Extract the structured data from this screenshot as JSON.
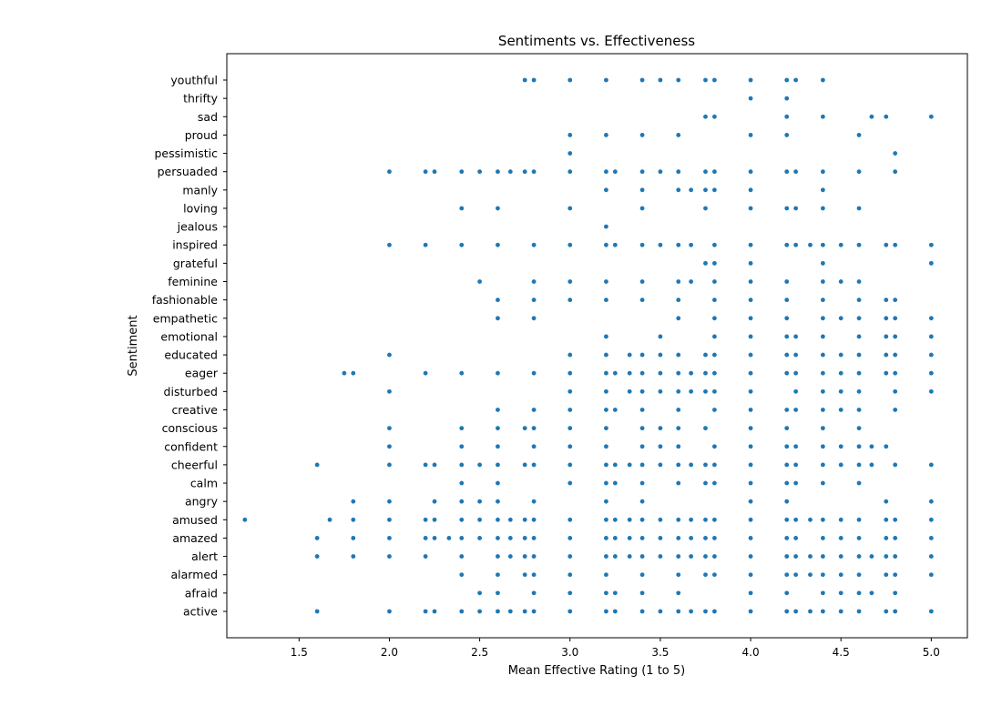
{
  "chart_data": {
    "type": "scatter",
    "title": "Sentiments vs. Effectiveness",
    "xlabel": "Mean Effective Rating (1 to 5)",
    "ylabel": "Sentiment",
    "xlim": [
      1.1,
      5.2
    ],
    "xticks": [
      "1.5",
      "2.0",
      "2.5",
      "3.0",
      "3.5",
      "4.0",
      "4.5",
      "5.0"
    ],
    "categories": [
      "active",
      "afraid",
      "alarmed",
      "alert",
      "amazed",
      "amused",
      "angry",
      "calm",
      "cheerful",
      "confident",
      "conscious",
      "creative",
      "disturbed",
      "eager",
      "educated",
      "emotional",
      "empathetic",
      "fashionable",
      "feminine",
      "grateful",
      "inspired",
      "jealous",
      "loving",
      "manly",
      "persuaded",
      "pessimistic",
      "proud",
      "sad",
      "thrifty",
      "youthful"
    ],
    "grid": false,
    "marker_color": "#1f77b4",
    "points": [
      {
        "category": "youthful",
        "x": [
          2.75,
          2.8,
          3.0,
          3.2,
          3.4,
          3.5,
          3.6,
          3.75,
          3.8,
          4.0,
          4.2,
          4.25,
          4.4
        ]
      },
      {
        "category": "thrifty",
        "x": [
          4.0,
          4.2
        ]
      },
      {
        "category": "sad",
        "x": [
          3.75,
          3.8,
          4.2,
          4.4,
          4.67,
          4.75,
          5.0
        ]
      },
      {
        "category": "proud",
        "x": [
          3.0,
          3.2,
          3.4,
          3.6,
          4.0,
          4.2,
          4.6
        ]
      },
      {
        "category": "pessimistic",
        "x": [
          3.0,
          4.8
        ]
      },
      {
        "category": "persuaded",
        "x": [
          2.0,
          2.2,
          2.25,
          2.4,
          2.5,
          2.6,
          2.67,
          2.75,
          2.8,
          3.0,
          3.2,
          3.25,
          3.4,
          3.5,
          3.6,
          3.75,
          3.8,
          4.0,
          4.2,
          4.25,
          4.4,
          4.6,
          4.8
        ]
      },
      {
        "category": "manly",
        "x": [
          3.2,
          3.4,
          3.6,
          3.67,
          3.75,
          3.8,
          4.0,
          4.4
        ]
      },
      {
        "category": "loving",
        "x": [
          2.4,
          2.6,
          3.0,
          3.4,
          3.75,
          4.0,
          4.2,
          4.25,
          4.4,
          4.6
        ]
      },
      {
        "category": "jealous",
        "x": [
          3.2
        ]
      },
      {
        "category": "inspired",
        "x": [
          2.0,
          2.2,
          2.4,
          2.6,
          2.8,
          3.0,
          3.2,
          3.25,
          3.4,
          3.5,
          3.6,
          3.67,
          3.8,
          4.0,
          4.2,
          4.25,
          4.33,
          4.4,
          4.5,
          4.6,
          4.75,
          4.8,
          5.0
        ]
      },
      {
        "category": "grateful",
        "x": [
          3.75,
          3.8,
          4.0,
          4.4,
          5.0
        ]
      },
      {
        "category": "feminine",
        "x": [
          2.5,
          2.8,
          3.0,
          3.2,
          3.4,
          3.6,
          3.67,
          3.8,
          4.0,
          4.2,
          4.4,
          4.5,
          4.6
        ]
      },
      {
        "category": "fashionable",
        "x": [
          2.6,
          2.8,
          3.0,
          3.2,
          3.4,
          3.6,
          3.8,
          4.0,
          4.2,
          4.4,
          4.6,
          4.75,
          4.8
        ]
      },
      {
        "category": "empathetic",
        "x": [
          2.6,
          2.8,
          3.6,
          3.8,
          4.0,
          4.2,
          4.4,
          4.5,
          4.6,
          4.75,
          4.8,
          5.0
        ]
      },
      {
        "category": "emotional",
        "x": [
          3.2,
          3.5,
          3.8,
          4.0,
          4.2,
          4.25,
          4.4,
          4.6,
          4.75,
          4.8,
          5.0
        ]
      },
      {
        "category": "educated",
        "x": [
          2.0,
          3.0,
          3.2,
          3.33,
          3.4,
          3.5,
          3.6,
          3.75,
          3.8,
          4.0,
          4.2,
          4.25,
          4.4,
          4.5,
          4.6,
          4.75,
          4.8,
          5.0
        ]
      },
      {
        "category": "eager",
        "x": [
          1.75,
          1.8,
          2.2,
          2.4,
          2.6,
          2.8,
          3.0,
          3.2,
          3.25,
          3.33,
          3.4,
          3.5,
          3.6,
          3.67,
          3.75,
          3.8,
          4.0,
          4.2,
          4.25,
          4.4,
          4.5,
          4.6,
          4.75,
          4.8,
          5.0
        ]
      },
      {
        "category": "disturbed",
        "x": [
          2.0,
          3.0,
          3.2,
          3.33,
          3.4,
          3.5,
          3.6,
          3.67,
          3.75,
          3.8,
          4.0,
          4.25,
          4.4,
          4.5,
          4.6,
          4.8,
          5.0
        ]
      },
      {
        "category": "creative",
        "x": [
          2.6,
          2.8,
          3.0,
          3.2,
          3.25,
          3.4,
          3.6,
          3.8,
          4.0,
          4.2,
          4.25,
          4.4,
          4.5,
          4.6,
          4.8
        ]
      },
      {
        "category": "conscious",
        "x": [
          2.0,
          2.4,
          2.6,
          2.75,
          2.8,
          3.0,
          3.2,
          3.4,
          3.5,
          3.6,
          3.75,
          4.0,
          4.2,
          4.4,
          4.6
        ]
      },
      {
        "category": "confident",
        "x": [
          2.0,
          2.4,
          2.6,
          2.8,
          3.0,
          3.2,
          3.4,
          3.5,
          3.6,
          3.8,
          4.0,
          4.2,
          4.25,
          4.4,
          4.5,
          4.6,
          4.67,
          4.75
        ]
      },
      {
        "category": "cheerful",
        "x": [
          1.6,
          2.0,
          2.2,
          2.25,
          2.4,
          2.5,
          2.6,
          2.75,
          2.8,
          3.0,
          3.2,
          3.25,
          3.33,
          3.4,
          3.5,
          3.6,
          3.67,
          3.75,
          3.8,
          4.0,
          4.2,
          4.25,
          4.4,
          4.5,
          4.6,
          4.67,
          4.8,
          5.0
        ]
      },
      {
        "category": "calm",
        "x": [
          2.4,
          2.6,
          3.0,
          3.2,
          3.25,
          3.4,
          3.6,
          3.75,
          3.8,
          4.0,
          4.2,
          4.25,
          4.4,
          4.6
        ]
      },
      {
        "category": "angry",
        "x": [
          1.8,
          2.0,
          2.25,
          2.4,
          2.5,
          2.6,
          2.8,
          3.2,
          3.4,
          4.0,
          4.2,
          4.75,
          5.0
        ]
      },
      {
        "category": "amused",
        "x": [
          1.2,
          1.67,
          1.8,
          2.0,
          2.2,
          2.25,
          2.4,
          2.5,
          2.6,
          2.67,
          2.75,
          2.8,
          3.0,
          3.2,
          3.25,
          3.33,
          3.4,
          3.5,
          3.6,
          3.67,
          3.75,
          3.8,
          4.0,
          4.2,
          4.25,
          4.33,
          4.4,
          4.5,
          4.6,
          4.75,
          4.8,
          5.0
        ]
      },
      {
        "category": "amazed",
        "x": [
          1.6,
          1.8,
          2.0,
          2.2,
          2.25,
          2.33,
          2.4,
          2.5,
          2.6,
          2.67,
          2.75,
          2.8,
          3.0,
          3.2,
          3.25,
          3.33,
          3.4,
          3.5,
          3.6,
          3.67,
          3.75,
          3.8,
          4.0,
          4.2,
          4.25,
          4.4,
          4.5,
          4.6,
          4.75,
          4.8,
          5.0
        ]
      },
      {
        "category": "alert",
        "x": [
          1.6,
          1.8,
          2.0,
          2.2,
          2.4,
          2.6,
          2.67,
          2.75,
          2.8,
          3.0,
          3.2,
          3.25,
          3.33,
          3.4,
          3.5,
          3.6,
          3.67,
          3.75,
          3.8,
          4.0,
          4.2,
          4.25,
          4.33,
          4.4,
          4.5,
          4.6,
          4.67,
          4.75,
          4.8,
          5.0
        ]
      },
      {
        "category": "alarmed",
        "x": [
          2.4,
          2.6,
          2.75,
          2.8,
          3.0,
          3.2,
          3.4,
          3.6,
          3.75,
          3.8,
          4.0,
          4.2,
          4.25,
          4.33,
          4.4,
          4.5,
          4.6,
          4.75,
          4.8,
          5.0
        ]
      },
      {
        "category": "afraid",
        "x": [
          2.5,
          2.6,
          2.8,
          3.0,
          3.2,
          3.25,
          3.4,
          3.6,
          4.0,
          4.2,
          4.4,
          4.5,
          4.6,
          4.67,
          4.8
        ]
      },
      {
        "category": "active",
        "x": [
          1.6,
          2.0,
          2.2,
          2.25,
          2.4,
          2.5,
          2.6,
          2.67,
          2.75,
          2.8,
          3.0,
          3.2,
          3.25,
          3.4,
          3.5,
          3.6,
          3.67,
          3.75,
          3.8,
          4.0,
          4.2,
          4.25,
          4.33,
          4.4,
          4.5,
          4.6,
          4.75,
          4.8,
          5.0
        ]
      }
    ]
  }
}
